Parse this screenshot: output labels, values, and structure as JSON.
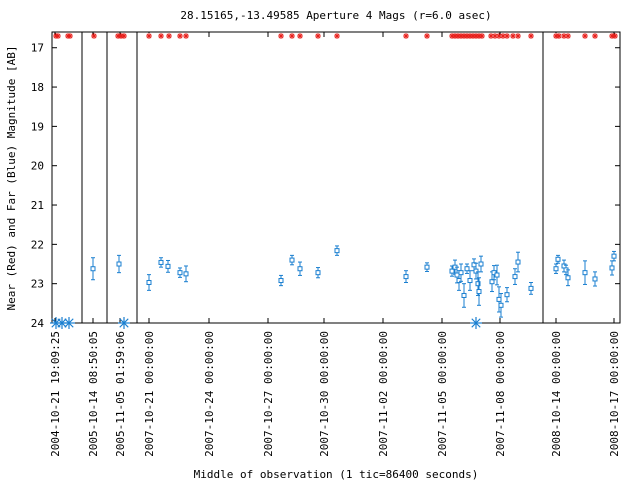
{
  "chart_data": {
    "type": "scatter",
    "title": "28.15165,-13.49585   Aperture 4 Mags (r=6.0 asec)",
    "xlabel": "Middle of observation (1 tic=86400 seconds)",
    "ylabel": "Near (Red) and Far (Blue) Magnitude [AB]",
    "ylim": [
      24,
      16.6
    ],
    "y_inverted": true,
    "y_ticks": [
      17,
      18,
      19,
      20,
      21,
      22,
      23,
      24
    ],
    "x_axis": "broken time axis; segments separated by vertical lines",
    "x_tick_labels": [
      "2004-10-21 19:09:25",
      "2005-10-14 08:50:05",
      "2005-11-05 01:59:06",
      "2007-10-21 00:00:00",
      "2007-10-24 00:00:00",
      "2007-10-27 00:00:00",
      "2007-10-30 00:00:00",
      "2007-11-02 00:00:00",
      "2007-11-05 00:00:00",
      "2007-11-08 00:00:00",
      "2008-10-14 00:00:00",
      "2008-10-17 00:00:00"
    ],
    "series": [
      {
        "role": "far (blue) detections",
        "color": "#1a7fd0",
        "marker": "square with error bars",
        "points": [
          {
            "x": 93,
            "y": 22.62,
            "err": 0.28
          },
          {
            "x": 119,
            "y": 22.5,
            "err": 0.22
          },
          {
            "x": 149,
            "y": 22.97,
            "err": 0.2
          },
          {
            "x": 161,
            "y": 22.46,
            "err": 0.12
          },
          {
            "x": 168,
            "y": 22.56,
            "err": 0.15
          },
          {
            "x": 180,
            "y": 22.72,
            "err": 0.12
          },
          {
            "x": 186,
            "y": 22.75,
            "err": 0.2
          },
          {
            "x": 281,
            "y": 22.92,
            "err": 0.13
          },
          {
            "x": 292,
            "y": 22.4,
            "err": 0.12
          },
          {
            "x": 300,
            "y": 22.62,
            "err": 0.17
          },
          {
            "x": 318,
            "y": 22.72,
            "err": 0.13
          },
          {
            "x": 337,
            "y": 22.16,
            "err": 0.12
          },
          {
            "x": 406,
            "y": 22.82,
            "err": 0.15
          },
          {
            "x": 427,
            "y": 22.58,
            "err": 0.11
          },
          {
            "x": 452,
            "y": 22.68,
            "err": 0.13
          },
          {
            "x": 455,
            "y": 22.58,
            "err": 0.18
          },
          {
            "x": 457,
            "y": 22.78,
            "err": 0.2
          },
          {
            "x": 459,
            "y": 22.92,
            "err": 0.25
          },
          {
            "x": 461,
            "y": 22.72,
            "err": 0.22
          },
          {
            "x": 464,
            "y": 23.3,
            "err": 0.3
          },
          {
            "x": 467,
            "y": 22.62,
            "err": 0.12
          },
          {
            "x": 470,
            "y": 22.92,
            "err": 0.25
          },
          {
            "x": 474,
            "y": 22.52,
            "err": 0.15
          },
          {
            "x": 476,
            "y": 22.68,
            "err": 0.2
          },
          {
            "x": 478,
            "y": 23.0,
            "err": 0.3
          },
          {
            "x": 479,
            "y": 23.2,
            "err": 0.35
          },
          {
            "x": 481,
            "y": 22.5,
            "err": 0.2
          },
          {
            "x": 492,
            "y": 22.95,
            "err": 0.25
          },
          {
            "x": 494,
            "y": 22.72,
            "err": 0.18
          },
          {
            "x": 497,
            "y": 22.78,
            "err": 0.25
          },
          {
            "x": 499,
            "y": 23.4,
            "err": 0.32
          },
          {
            "x": 501,
            "y": 23.55,
            "err": 0.3
          },
          {
            "x": 507,
            "y": 23.28,
            "err": 0.18
          },
          {
            "x": 515,
            "y": 22.82,
            "err": 0.2
          },
          {
            "x": 518,
            "y": 22.45,
            "err": 0.25
          },
          {
            "x": 531,
            "y": 23.12,
            "err": 0.15
          },
          {
            "x": 556,
            "y": 22.62,
            "err": 0.12
          },
          {
            "x": 558,
            "y": 22.38,
            "err": 0.1
          },
          {
            "x": 564,
            "y": 22.55,
            "err": 0.15
          },
          {
            "x": 566,
            "y": 22.65,
            "err": 0.12
          },
          {
            "x": 568,
            "y": 22.85,
            "err": 0.2
          },
          {
            "x": 585,
            "y": 22.72,
            "err": 0.3
          },
          {
            "x": 595,
            "y": 22.88,
            "err": 0.18
          },
          {
            "x": 612,
            "y": 22.6,
            "err": 0.18
          },
          {
            "x": 614,
            "y": 22.3,
            "err": 0.12
          }
        ]
      },
      {
        "role": "far (blue) upper limits",
        "color": "#1a7fd0",
        "marker": "large asterisk",
        "points": [
          {
            "x": 56,
            "y": 24.15
          },
          {
            "x": 62,
            "y": 24.15
          },
          {
            "x": 69,
            "y": 24.15
          },
          {
            "x": 124,
            "y": 24.15
          },
          {
            "x": 476,
            "y": 24.15
          }
        ]
      },
      {
        "role": "near (red) upper limits",
        "color": "#e8201c",
        "marker": "small asterisk",
        "points": [
          {
            "x": 56,
            "y": 16.65
          },
          {
            "x": 58,
            "y": 16.62
          },
          {
            "x": 68,
            "y": 16.62
          },
          {
            "x": 70,
            "y": 16.65
          },
          {
            "x": 94,
            "y": 16.62
          },
          {
            "x": 118,
            "y": 16.62
          },
          {
            "x": 121,
            "y": 16.64
          },
          {
            "x": 124,
            "y": 16.63
          },
          {
            "x": 149,
            "y": 16.62
          },
          {
            "x": 161,
            "y": 16.64
          },
          {
            "x": 169,
            "y": 16.63
          },
          {
            "x": 180,
            "y": 16.62
          },
          {
            "x": 186,
            "y": 16.63
          },
          {
            "x": 281,
            "y": 16.62
          },
          {
            "x": 292,
            "y": 16.62
          },
          {
            "x": 300,
            "y": 16.63
          },
          {
            "x": 318,
            "y": 16.63
          },
          {
            "x": 337,
            "y": 16.62
          },
          {
            "x": 406,
            "y": 16.63
          },
          {
            "x": 427,
            "y": 16.62
          },
          {
            "x": 452,
            "y": 16.62
          },
          {
            "x": 455,
            "y": 16.63
          },
          {
            "x": 458,
            "y": 16.62
          },
          {
            "x": 461,
            "y": 16.63
          },
          {
            "x": 464,
            "y": 16.62
          },
          {
            "x": 467,
            "y": 16.63
          },
          {
            "x": 470,
            "y": 16.62
          },
          {
            "x": 473,
            "y": 16.63
          },
          {
            "x": 476,
            "y": 16.62
          },
          {
            "x": 479,
            "y": 16.63
          },
          {
            "x": 482,
            "y": 16.62
          },
          {
            "x": 491,
            "y": 16.63
          },
          {
            "x": 495,
            "y": 16.62
          },
          {
            "x": 499,
            "y": 16.63
          },
          {
            "x": 503,
            "y": 16.62
          },
          {
            "x": 507,
            "y": 16.63
          },
          {
            "x": 513,
            "y": 16.62
          },
          {
            "x": 518,
            "y": 16.63
          },
          {
            "x": 531,
            "y": 16.62
          },
          {
            "x": 556,
            "y": 16.63
          },
          {
            "x": 559,
            "y": 16.62
          },
          {
            "x": 564,
            "y": 16.64
          },
          {
            "x": 568,
            "y": 16.63
          },
          {
            "x": 585,
            "y": 16.62
          },
          {
            "x": 595,
            "y": 16.63
          },
          {
            "x": 612,
            "y": 16.62
          },
          {
            "x": 615,
            "y": 16.63
          }
        ]
      }
    ],
    "grid": false
  }
}
